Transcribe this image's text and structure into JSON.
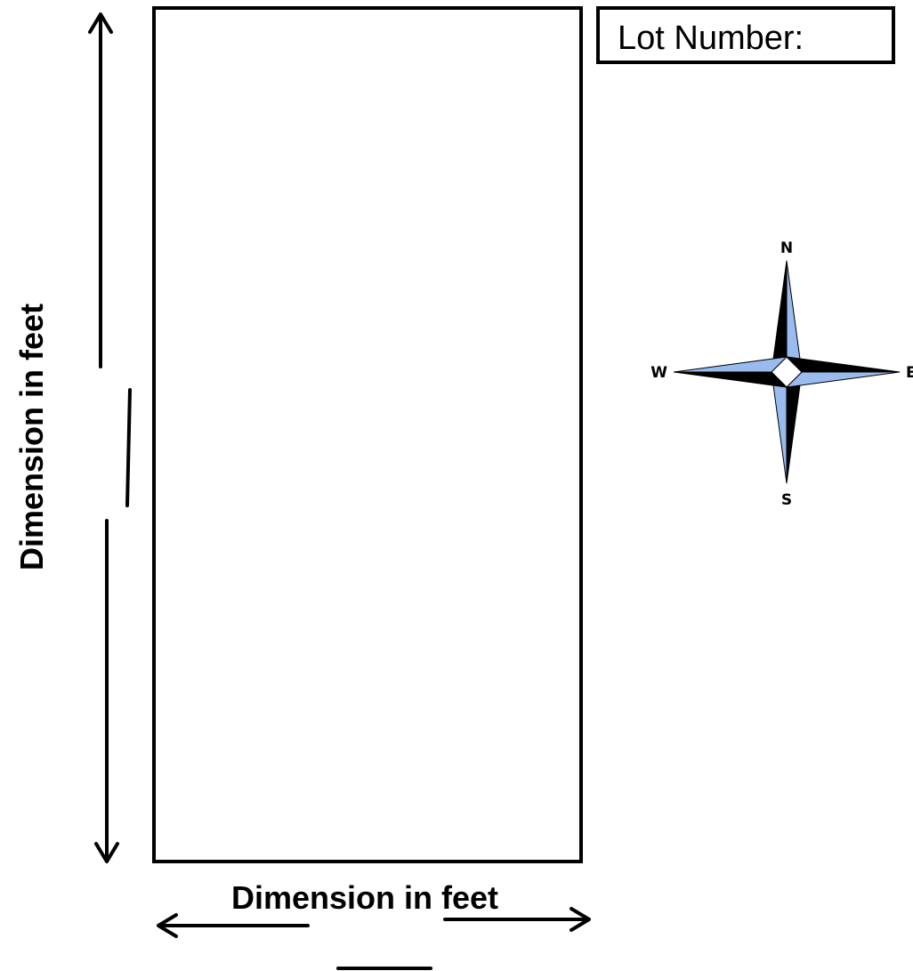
{
  "lot": {
    "label": "Lot Number:",
    "value": ""
  },
  "dimensions": {
    "vertical_label": "Dimension in feet",
    "horizontal_label": "Dimension in feet",
    "vertical_value": "",
    "horizontal_value": ""
  },
  "compass": {
    "north": "N",
    "south": "S",
    "east": "E",
    "west": "W",
    "light_color": "#99bbee",
    "dark_color": "#000000"
  },
  "colors": {
    "line": "#000000",
    "background": "#ffffff"
  }
}
